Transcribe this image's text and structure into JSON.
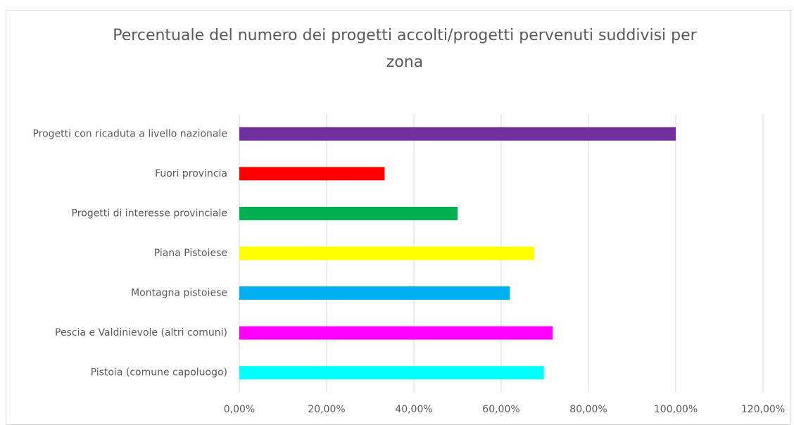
{
  "chart_data": {
    "type": "barh",
    "title": "Percentuale del numero dei progetti accolti/progetti pervenuti suddivisi per zona",
    "categories": [
      "Progetti con ricaduta a livello nazionale",
      "Fuori provincia",
      "Progetti di interesse provinciale",
      "Piana Pistoiese",
      "Montagna pistoiese",
      "Pescia e Valdinievole (altri comuni)",
      "Pistoia (comune capoluogo)"
    ],
    "values": [
      100,
      33.3,
      50,
      67.6,
      62,
      71.8,
      69.8
    ],
    "colors": [
      "#7030a0",
      "#ff0000",
      "#00b050",
      "#ffff00",
      "#00b0f0",
      "#ff00ff",
      "#00ffff"
    ],
    "xlim": [
      0,
      120
    ],
    "xticks": [
      {
        "value": 0,
        "label": "0,00%"
      },
      {
        "value": 20,
        "label": "20,00%"
      },
      {
        "value": 40,
        "label": "40,00%"
      },
      {
        "value": 60,
        "label": "60,00%"
      },
      {
        "value": 80,
        "label": "80,00%"
      },
      {
        "value": 100,
        "label": "100,00%"
      },
      {
        "value": 120,
        "label": "120,00%"
      }
    ],
    "grid": true
  }
}
